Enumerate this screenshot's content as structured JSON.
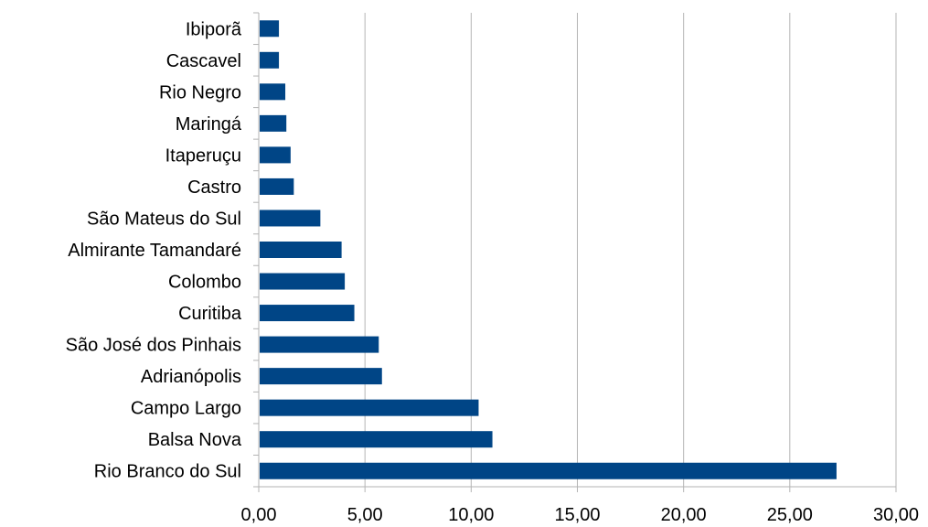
{
  "chart_data": {
    "type": "bar",
    "orientation": "horizontal",
    "categories": [
      "Ibiporã",
      "Cascavel",
      "Rio Negro",
      "Maringá",
      "Itaperuçu",
      "Castro",
      "São Mateus do Sul",
      "Almirante Tamandaré",
      "Colombo",
      "Curitiba",
      "São José dos Pinhais",
      "Adrianópolis",
      "Campo Largo",
      "Balsa Nova",
      "Rio Branco do Sul"
    ],
    "values": [
      0.95,
      0.95,
      1.25,
      1.3,
      1.5,
      1.65,
      2.9,
      3.9,
      4.05,
      4.5,
      5.65,
      5.8,
      10.35,
      11.0,
      27.2
    ],
    "xlim": [
      0,
      30
    ],
    "xticks": [
      0,
      5,
      10,
      15,
      20,
      25,
      30
    ],
    "xtick_labels": [
      "0,00",
      "5,00",
      "10,00",
      "15,00",
      "20,00",
      "25,00",
      "30,00"
    ],
    "title": "",
    "xlabel": "",
    "ylabel": "",
    "grid": "vertical",
    "legend": "none",
    "bar_color": "#004586",
    "grid_color": "#b3b3b3",
    "axis_color": "#b3b3b3"
  }
}
